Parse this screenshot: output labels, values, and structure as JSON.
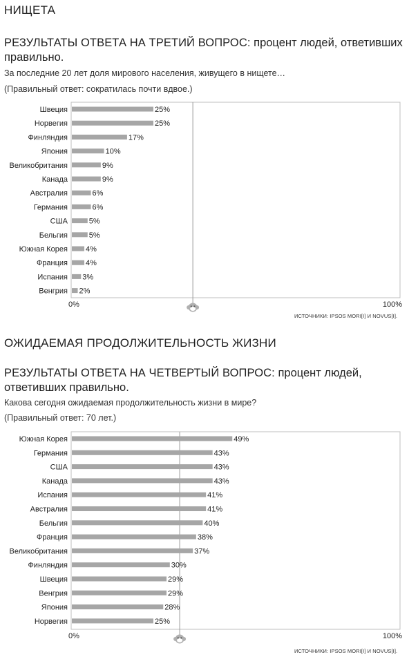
{
  "colors": {
    "bar": "#a6a6a6",
    "axis": "#bfbfbf",
    "marker_line": "#999999",
    "icon": "#b0b0b0",
    "text": "#222222"
  },
  "section1": {
    "heading": "НИЩЕТА",
    "title_caps": "РЕЗУЛЬТАТЫ ОТВЕТА НА ТРЕТИЙ ВОПРОС:",
    "title_rest": "процент людей, ответивших правильно.",
    "question": "За последние 20 лет доля мирового населения, живущего в нищете…",
    "answer": "(Правильный ответ: сократилась почти вдвое.)",
    "source": "ИСТОЧНИКИ: IPSOS MORI[I] И NOVUS[I].",
    "icon": "monkey-icon"
  },
  "section2": {
    "heading": "ОЖИДАЕМАЯ ПРОДОЛЖИТЕЛЬНОСТЬ ЖИЗНИ",
    "title_caps": "РЕЗУЛЬТАТЫ ОТВЕТА НА ЧЕТВЕРТЫЙ ВОПРОС:",
    "title_rest": "процент людей, ответивших правильно.",
    "question": "Какова сегодня ожидаемая продолжительность жизни в мире?",
    "answer": "(Правильный ответ: 70 лет.)",
    "source": "ИСТОЧНИКИ: IPSOS MORI[I] И NOVUS[I].",
    "icon": "monkey-icon"
  },
  "chart_data": [
    {
      "type": "bar",
      "orientation": "horizontal",
      "categories": [
        "Швеция",
        "Норвегия",
        "Финляндия",
        "Япония",
        "Великобритания",
        "Канада",
        "Австралия",
        "Германия",
        "США",
        "Бельгия",
        "Южная Корея",
        "Франция",
        "Испания",
        "Венгрия"
      ],
      "values": [
        25,
        25,
        17,
        10,
        9,
        9,
        6,
        6,
        5,
        5,
        4,
        4,
        3,
        2
      ],
      "value_suffix": "%",
      "xlim": [
        0,
        100
      ],
      "tick_labels": [
        "0%",
        "100%"
      ],
      "reference_value": 37,
      "grid": false
    },
    {
      "type": "bar",
      "orientation": "horizontal",
      "categories": [
        "Южная Корея",
        "Германия",
        "США",
        "Канада",
        "Испания",
        "Австралия",
        "Бельгия",
        "Франция",
        "Великобритания",
        "Финляндия",
        "Швеция",
        "Венгрия",
        "Япония",
        "Норвегия"
      ],
      "values": [
        49,
        43,
        43,
        43,
        41,
        41,
        40,
        38,
        37,
        30,
        29,
        29,
        28,
        25
      ],
      "value_suffix": "%",
      "xlim": [
        0,
        100
      ],
      "tick_labels": [
        "0%",
        "100%"
      ],
      "reference_value": 33,
      "grid": false
    }
  ]
}
